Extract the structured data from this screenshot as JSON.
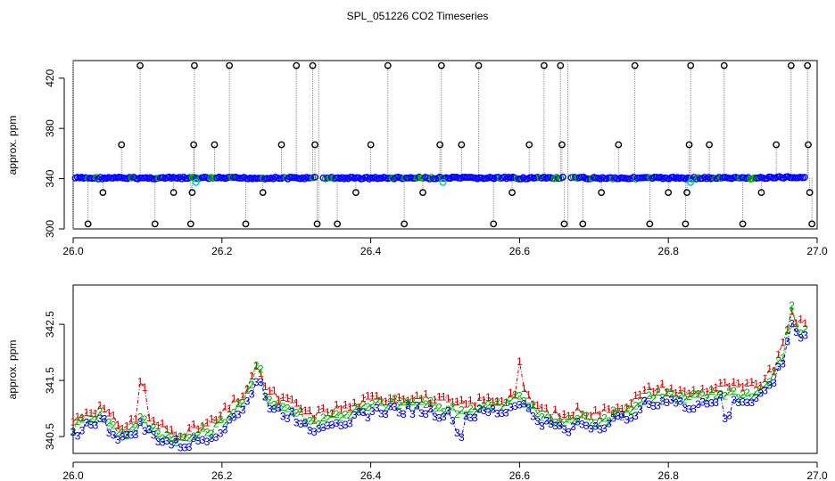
{
  "title": "SPL_051226  CO2 Timeseries",
  "chart_data": [
    {
      "type": "scatter",
      "ylabel": "approx. ppm",
      "xlim": [
        26.0,
        27.0
      ],
      "ylim": [
        300,
        434
      ],
      "xticks": [
        "26.0",
        "26.2",
        "26.4",
        "26.6",
        "26.8",
        "27.0"
      ],
      "yticks": [
        "300",
        "340",
        "380",
        "420"
      ],
      "baseline_ppm": 340.5,
      "baseline_color": "#0000ff",
      "marker_color": "#000000",
      "cal_color": "#00cccc",
      "segment_breaks": [
        26.33,
        26.665
      ],
      "cal_points": [
        [
          26.165,
          337
        ],
        [
          26.497,
          337
        ],
        [
          26.83,
          337
        ]
      ],
      "outliers": [
        [
          26.02,
          304
        ],
        [
          26.04,
          329
        ],
        [
          26.065,
          367
        ],
        [
          26.09,
          430
        ],
        [
          26.11,
          304
        ],
        [
          26.135,
          329
        ],
        [
          26.158,
          304
        ],
        [
          26.16,
          329
        ],
        [
          26.162,
          367
        ],
        [
          26.163,
          430
        ],
        [
          26.19,
          367
        ],
        [
          26.21,
          430
        ],
        [
          26.232,
          304
        ],
        [
          26.255,
          329
        ],
        [
          26.28,
          367
        ],
        [
          26.3,
          430
        ],
        [
          26.322,
          430
        ],
        [
          26.325,
          367
        ],
        [
          26.328,
          304
        ],
        [
          26.355,
          304
        ],
        [
          26.38,
          329
        ],
        [
          26.4,
          367
        ],
        [
          26.423,
          430
        ],
        [
          26.445,
          304
        ],
        [
          26.47,
          329
        ],
        [
          26.493,
          367
        ],
        [
          26.495,
          430
        ],
        [
          26.522,
          367
        ],
        [
          26.545,
          430
        ],
        [
          26.565,
          304
        ],
        [
          26.59,
          329
        ],
        [
          26.613,
          367
        ],
        [
          26.633,
          430
        ],
        [
          26.655,
          430
        ],
        [
          26.657,
          367
        ],
        [
          26.66,
          304
        ],
        [
          26.685,
          304
        ],
        [
          26.71,
          329
        ],
        [
          26.733,
          367
        ],
        [
          26.755,
          430
        ],
        [
          26.775,
          304
        ],
        [
          26.8,
          329
        ],
        [
          26.823,
          304
        ],
        [
          26.825,
          329
        ],
        [
          26.828,
          367
        ],
        [
          26.83,
          430
        ],
        [
          26.855,
          367
        ],
        [
          26.875,
          430
        ],
        [
          26.9,
          304
        ],
        [
          26.925,
          329
        ],
        [
          26.945,
          367
        ],
        [
          26.965,
          430
        ],
        [
          26.987,
          430
        ],
        [
          26.988,
          367
        ],
        [
          26.99,
          329
        ],
        [
          26.993,
          304
        ]
      ]
    },
    {
      "type": "line",
      "ylabel": "approx. ppm",
      "xlim": [
        26.0,
        27.0
      ],
      "ylim": [
        340.2,
        343.2
      ],
      "xticks": [
        "26.0",
        "26.2",
        "26.4",
        "26.6",
        "26.8",
        "27.0"
      ],
      "yticks": [
        "340.5",
        "341.5",
        "342.5"
      ],
      "anchors": [
        [
          26.0,
          340.65
        ],
        [
          26.02,
          340.85
        ],
        [
          26.04,
          340.9
        ],
        [
          26.05,
          340.7
        ],
        [
          26.07,
          340.55
        ],
        [
          26.09,
          340.8
        ],
        [
          26.11,
          340.6
        ],
        [
          26.13,
          340.5
        ],
        [
          26.15,
          340.45
        ],
        [
          26.17,
          340.55
        ],
        [
          26.19,
          340.65
        ],
        [
          26.21,
          340.9
        ],
        [
          26.23,
          341.15
        ],
        [
          26.25,
          341.65
        ],
        [
          26.26,
          341.2
        ],
        [
          26.28,
          341.05
        ],
        [
          26.3,
          340.95
        ],
        [
          26.32,
          340.75
        ],
        [
          26.34,
          340.85
        ],
        [
          26.36,
          340.9
        ],
        [
          26.38,
          340.95
        ],
        [
          26.4,
          341.05
        ],
        [
          26.43,
          341.1
        ],
        [
          26.46,
          341.1
        ],
        [
          26.48,
          341.05
        ],
        [
          26.5,
          341.0
        ],
        [
          26.52,
          340.95
        ],
        [
          26.54,
          341.0
        ],
        [
          26.56,
          341.05
        ],
        [
          26.58,
          341.05
        ],
        [
          26.6,
          341.25
        ],
        [
          26.62,
          340.95
        ],
        [
          26.64,
          340.8
        ],
        [
          26.66,
          340.75
        ],
        [
          26.68,
          340.85
        ],
        [
          26.7,
          340.8
        ],
        [
          26.72,
          340.85
        ],
        [
          26.74,
          340.95
        ],
        [
          26.76,
          341.1
        ],
        [
          26.78,
          341.25
        ],
        [
          26.8,
          341.25
        ],
        [
          26.82,
          341.15
        ],
        [
          26.84,
          341.2
        ],
        [
          26.86,
          341.25
        ],
        [
          26.88,
          341.3
        ],
        [
          26.9,
          341.25
        ],
        [
          26.92,
          341.3
        ],
        [
          26.94,
          341.55
        ],
        [
          26.955,
          342.0
        ],
        [
          26.965,
          342.65
        ],
        [
          26.975,
          342.4
        ],
        [
          26.985,
          342.35
        ]
      ],
      "series": [
        {
          "name": "1",
          "label": "1",
          "color": "#cc0000",
          "offset": 0.12
        },
        {
          "name": "2",
          "label": "2",
          "color": "#00aa00",
          "offset": 0.0
        },
        {
          "name": "3",
          "label": "3",
          "color": "#0000cc",
          "offset": -0.12
        }
      ],
      "spikes": [
        {
          "series": "1",
          "x": 26.093,
          "dy": 0.55
        },
        {
          "series": "1",
          "x": 26.6,
          "dy": 0.45
        },
        {
          "series": "2",
          "x": 26.965,
          "dy": 0.22
        },
        {
          "series": "2",
          "x": 26.25,
          "dy": 0.15
        },
        {
          "series": "3",
          "x": 26.52,
          "dy": -0.3
        },
        {
          "series": "3",
          "x": 26.88,
          "dy": -0.35
        }
      ]
    }
  ]
}
